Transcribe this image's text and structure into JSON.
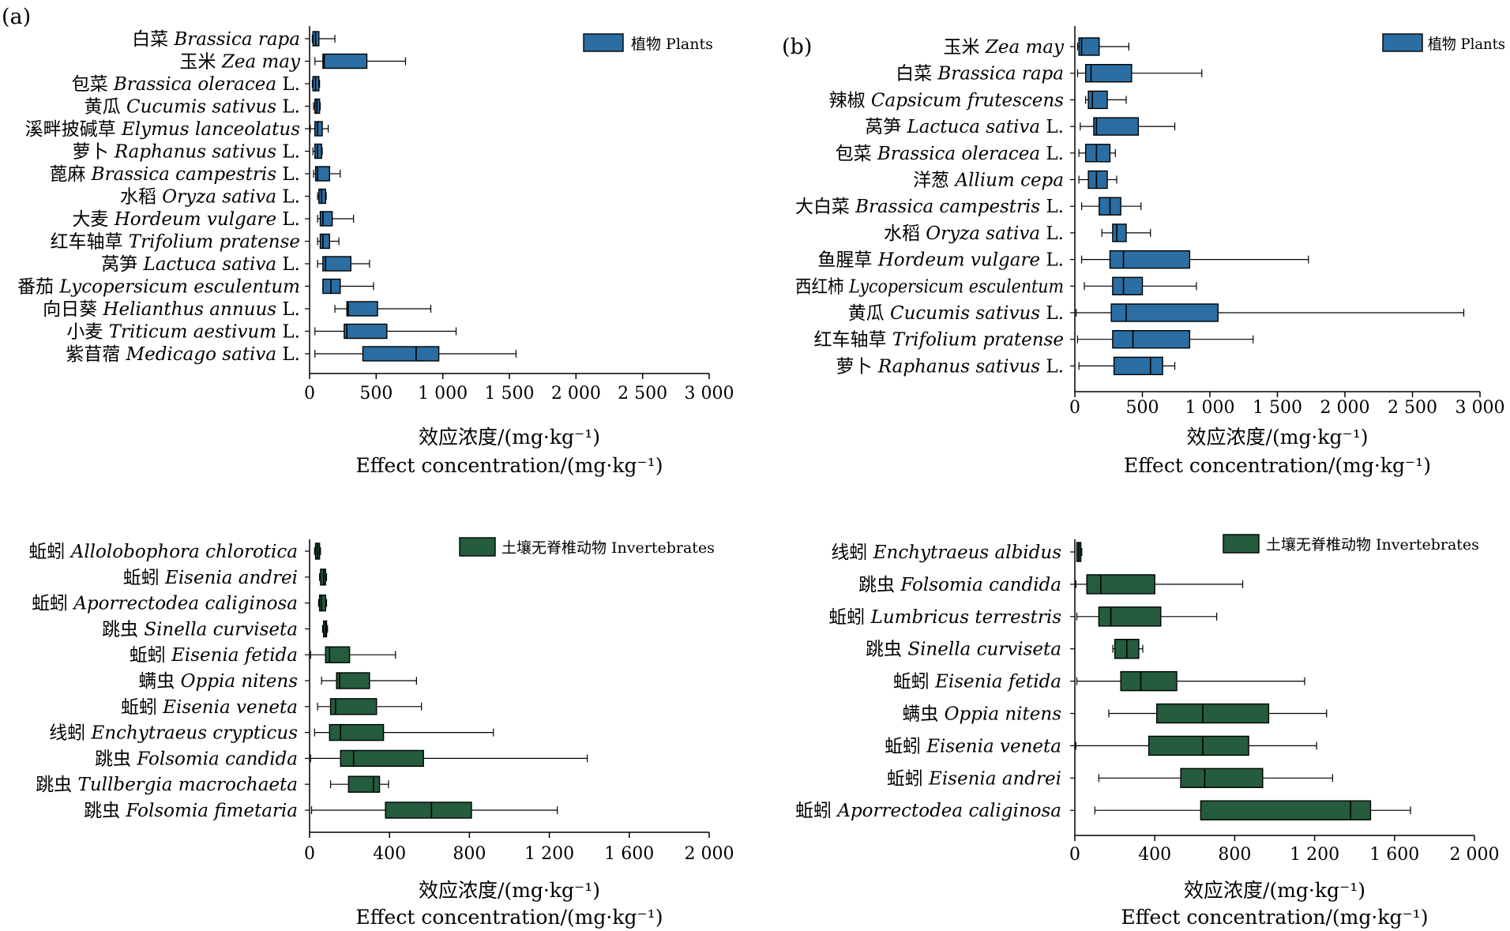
{
  "figure": {
    "panel_a_letter": "(a)",
    "panel_b_letter": "(b)"
  },
  "colors": {
    "plants_box": "#2a6ea3",
    "invertebrates_box": "#245c3d",
    "stroke": "#000000"
  },
  "chart_data": [
    {
      "type": "boxplot",
      "panel": "(a)",
      "legend": "植物 Plants",
      "legend_position": "top-right",
      "xlabel_cn": "效应浓度/(mg·kg⁻¹)",
      "xlabel_en": "Effect concentration/(mg·kg⁻¹)",
      "xlim": [
        0,
        3000
      ],
      "xticks": [
        "0",
        "500",
        "1 000",
        "1 500",
        "2 000",
        "2 500",
        "3 000"
      ],
      "grid": false,
      "categories": [
        {
          "cn": "白菜",
          "sp": "Brassica rapa",
          "auth": ""
        },
        {
          "cn": "玉米",
          "sp": "Zea may",
          "auth": ""
        },
        {
          "cn": "包菜",
          "sp": "Brassica oleracea",
          "auth": " L."
        },
        {
          "cn": "黄瓜",
          "sp": "Cucumis sativus",
          "auth": " L."
        },
        {
          "cn": "溪畔披碱草",
          "sp": "Elymus lanceolatus",
          "auth": ""
        },
        {
          "cn": "萝卜",
          "sp": "Raphanus sativus",
          "auth": " L."
        },
        {
          "cn": "蓖麻",
          "sp": "Brassica campestris",
          "auth": " L."
        },
        {
          "cn": "水稻",
          "sp": "Oryza sativa",
          "auth": " L."
        },
        {
          "cn": "大麦",
          "sp": "Hordeum vulgare",
          "auth": " L."
        },
        {
          "cn": "红车轴草",
          "sp": "Trifolium pratense",
          "auth": ""
        },
        {
          "cn": "莴笋",
          "sp": "Lactuca sativa",
          "auth": " L."
        },
        {
          "cn": "番茄",
          "sp": "Lycopersicum esculentum",
          "auth": ""
        },
        {
          "cn": "向日葵",
          "sp": "Helianthus annuus",
          "auth": " L."
        },
        {
          "cn": "小麦",
          "sp": "Triticum aestivum",
          "auth": " L."
        },
        {
          "cn": "紫苜蓿",
          "sp": "Medicago sativa",
          "auth": " L."
        }
      ],
      "boxes": [
        {
          "min": 20,
          "q1": 25,
          "median": 45,
          "q3": 70,
          "max": 190
        },
        {
          "min": 40,
          "q1": 100,
          "median": 110,
          "q3": 430,
          "max": 720
        },
        {
          "min": 20,
          "q1": 25,
          "median": 45,
          "q3": 70,
          "max": 75
        },
        {
          "min": 30,
          "q1": 40,
          "median": 55,
          "q3": 75,
          "max": 80
        },
        {
          "min": 5,
          "q1": 40,
          "median": 60,
          "q3": 95,
          "max": 140
        },
        {
          "min": 25,
          "q1": 40,
          "median": 60,
          "q3": 90,
          "max": 95
        },
        {
          "min": 30,
          "q1": 45,
          "median": 60,
          "q3": 150,
          "max": 230
        },
        {
          "min": 60,
          "q1": 70,
          "median": 90,
          "q3": 120,
          "max": 125
        },
        {
          "min": 60,
          "q1": 80,
          "median": 100,
          "q3": 170,
          "max": 330
        },
        {
          "min": 60,
          "q1": 80,
          "median": 100,
          "q3": 150,
          "max": 220
        },
        {
          "min": 60,
          "q1": 100,
          "median": 120,
          "q3": 310,
          "max": 450
        },
        {
          "min": 100,
          "q1": 100,
          "median": 160,
          "q3": 230,
          "max": 480
        },
        {
          "min": 190,
          "q1": 280,
          "median": 290,
          "q3": 510,
          "max": 910
        },
        {
          "min": 40,
          "q1": 260,
          "median": 280,
          "q3": 580,
          "max": 1100
        },
        {
          "min": 40,
          "q1": 400,
          "median": 800,
          "q3": 970,
          "max": 1550
        }
      ]
    },
    {
      "type": "boxplot",
      "panel": "(b)",
      "legend": "植物 Plants",
      "legend_position": "top-right",
      "xlabel_cn": "效应浓度/(mg·kg⁻¹)",
      "xlabel_en": "Effect concentration/(mg·kg⁻¹)",
      "xlim": [
        0,
        3000
      ],
      "xticks": [
        "0",
        "500",
        "1 000",
        "1 500",
        "2 000",
        "2 500",
        "3 000"
      ],
      "grid": false,
      "categories": [
        {
          "cn": "玉米",
          "sp": "Zea may",
          "auth": ""
        },
        {
          "cn": "白菜",
          "sp": "Brassica rapa",
          "auth": ""
        },
        {
          "cn": "辣椒",
          "sp": "Capsicum frutescens",
          "auth": ""
        },
        {
          "cn": "莴笋",
          "sp": "Lactuca sativa",
          "auth": " L."
        },
        {
          "cn": "包菜",
          "sp": "Brassica oleracea",
          "auth": " L."
        },
        {
          "cn": "洋葱",
          "sp": "Allium cepa",
          "auth": ""
        },
        {
          "cn": "大白菜",
          "sp": "Brassica campestris",
          "auth": " L."
        },
        {
          "cn": "水稻",
          "sp": "Oryza sativa",
          "auth": " L."
        },
        {
          "cn": "鱼腥草",
          "sp": "Hordeum vulgare",
          "auth": " L."
        },
        {
          "cn": "西红柿",
          "sp": "Lycopersicum esculentum",
          "auth": ""
        },
        {
          "cn": "黄瓜",
          "sp": "Cucumis sativus",
          "auth": " L."
        },
        {
          "cn": "红车轴草",
          "sp": "Trifolium pratense",
          "auth": ""
        },
        {
          "cn": "萝卜",
          "sp": "Raphanus sativus",
          "auth": " L."
        }
      ],
      "boxes": [
        {
          "min": 20,
          "q1": 30,
          "median": 50,
          "q3": 180,
          "max": 400
        },
        {
          "min": 20,
          "q1": 80,
          "median": 120,
          "q3": 420,
          "max": 940
        },
        {
          "min": 80,
          "q1": 100,
          "median": 130,
          "q3": 240,
          "max": 380
        },
        {
          "min": 40,
          "q1": 140,
          "median": 160,
          "q3": 470,
          "max": 740
        },
        {
          "min": 30,
          "q1": 80,
          "median": 160,
          "q3": 260,
          "max": 300
        },
        {
          "min": 30,
          "q1": 100,
          "median": 160,
          "q3": 240,
          "max": 310
        },
        {
          "min": 50,
          "q1": 180,
          "median": 260,
          "q3": 340,
          "max": 490
        },
        {
          "min": 200,
          "q1": 280,
          "median": 310,
          "q3": 380,
          "max": 560
        },
        {
          "min": 50,
          "q1": 260,
          "median": 360,
          "q3": 850,
          "max": 1730
        },
        {
          "min": 70,
          "q1": 280,
          "median": 360,
          "q3": 500,
          "max": 900
        },
        {
          "min": 10,
          "q1": 270,
          "median": 380,
          "q3": 1060,
          "max": 2880
        },
        {
          "min": 20,
          "q1": 280,
          "median": 430,
          "q3": 850,
          "max": 1320
        },
        {
          "min": 30,
          "q1": 290,
          "median": 560,
          "q3": 650,
          "max": 740
        }
      ]
    },
    {
      "type": "boxplot",
      "panel": "(a) bottom",
      "legend": "土壤无脊椎动物 Invertebrates",
      "legend_position": "top-right",
      "xlabel_cn": "效应浓度/(mg·kg⁻¹)",
      "xlabel_en": "Effect concentration/(mg·kg⁻¹)",
      "xlim": [
        0,
        2000
      ],
      "xticks": [
        "0",
        "400",
        "800",
        "1 200",
        "1 600",
        "2 000"
      ],
      "grid": false,
      "categories": [
        {
          "cn": "蚯蚓",
          "sp": "Allolobophora chlorotica",
          "auth": ""
        },
        {
          "cn": "蚯蚓",
          "sp": "Eisenia andrei",
          "auth": ""
        },
        {
          "cn": "蚯蚓",
          "sp": "Aporrectodea caliginosa",
          "auth": ""
        },
        {
          "cn": "跳虫",
          "sp": "Sinella curviseta",
          "auth": ""
        },
        {
          "cn": "蚯蚓",
          "sp": "Eisenia fetida",
          "auth": ""
        },
        {
          "cn": "螨虫",
          "sp": "Oppia nitens",
          "auth": ""
        },
        {
          "cn": "蚯蚓",
          "sp": "Eisenia veneta",
          "auth": ""
        },
        {
          "cn": "线蚓",
          "sp": "Enchytraeus crypticus",
          "auth": ""
        },
        {
          "cn": "跳虫",
          "sp": "Folsomia candida",
          "auth": ""
        },
        {
          "cn": "跳虫",
          "sp": "Tullbergia macrochaeta",
          "auth": ""
        },
        {
          "cn": "跳虫",
          "sp": "Folsomia fimetaria",
          "auth": ""
        }
      ],
      "boxes": [
        {
          "min": 25,
          "q1": 30,
          "median": 40,
          "q3": 50,
          "max": 55
        },
        {
          "min": 50,
          "q1": 55,
          "median": 70,
          "q3": 80,
          "max": 85
        },
        {
          "min": 45,
          "q1": 50,
          "median": 60,
          "q3": 80,
          "max": 85
        },
        {
          "min": 65,
          "q1": 70,
          "median": 80,
          "q3": 85,
          "max": 90
        },
        {
          "min": 5,
          "q1": 80,
          "median": 100,
          "q3": 200,
          "max": 430
        },
        {
          "min": 60,
          "q1": 135,
          "median": 150,
          "q3": 300,
          "max": 535
        },
        {
          "min": 40,
          "q1": 105,
          "median": 130,
          "q3": 335,
          "max": 560
        },
        {
          "min": 25,
          "q1": 100,
          "median": 155,
          "q3": 370,
          "max": 920
        },
        {
          "min": 5,
          "q1": 155,
          "median": 220,
          "q3": 570,
          "max": 1390
        },
        {
          "min": 105,
          "q1": 195,
          "median": 320,
          "q3": 350,
          "max": 395
        },
        {
          "min": 10,
          "q1": 380,
          "median": 610,
          "q3": 810,
          "max": 1240
        }
      ]
    },
    {
      "type": "boxplot",
      "panel": "(b) bottom",
      "legend": "土壤无脊椎动物 Invertebrates",
      "legend_position": "top-right",
      "xlabel_cn": "效应浓度/(mg·kg⁻¹)",
      "xlabel_en": "Effect concentration/(mg·kg⁻¹)",
      "xlim": [
        0,
        2000
      ],
      "xticks": [
        "0",
        "400",
        "800",
        "1 200",
        "1 600",
        "2 000"
      ],
      "grid": false,
      "categories": [
        {
          "cn": "线蚓",
          "sp": "Enchytraeus albidus",
          "auth": ""
        },
        {
          "cn": "跳虫",
          "sp": "Folsomia candida",
          "auth": ""
        },
        {
          "cn": "蚯蚓",
          "sp": "Lumbricus terrestris",
          "auth": ""
        },
        {
          "cn": "跳虫",
          "sp": "Sinella curviseta",
          "auth": ""
        },
        {
          "cn": "蚯蚓",
          "sp": "Eisenia fetida",
          "auth": ""
        },
        {
          "cn": "螨虫",
          "sp": "Oppia nitens",
          "auth": ""
        },
        {
          "cn": "蚯蚓",
          "sp": "Eisenia veneta",
          "auth": ""
        },
        {
          "cn": "蚯蚓",
          "sp": "Eisenia andrei",
          "auth": ""
        },
        {
          "cn": "蚯蚓",
          "sp": "Aporrectodea caliginosa",
          "auth": ""
        }
      ],
      "boxes": [
        {
          "min": 10,
          "q1": 10,
          "median": 20,
          "q3": 30,
          "max": 35
        },
        {
          "min": 5,
          "q1": 60,
          "median": 130,
          "q3": 400,
          "max": 840
        },
        {
          "min": 10,
          "q1": 120,
          "median": 180,
          "q3": 430,
          "max": 710
        },
        {
          "min": 190,
          "q1": 200,
          "median": 260,
          "q3": 320,
          "max": 340
        },
        {
          "min": 10,
          "q1": 230,
          "median": 330,
          "q3": 510,
          "max": 1150
        },
        {
          "min": 170,
          "q1": 410,
          "median": 640,
          "q3": 970,
          "max": 1260
        },
        {
          "min": 5,
          "q1": 370,
          "median": 640,
          "q3": 870,
          "max": 1210
        },
        {
          "min": 120,
          "q1": 530,
          "median": 650,
          "q3": 940,
          "max": 1290
        },
        {
          "min": 100,
          "q1": 630,
          "median": 1380,
          "q3": 1480,
          "max": 1680
        }
      ]
    }
  ]
}
